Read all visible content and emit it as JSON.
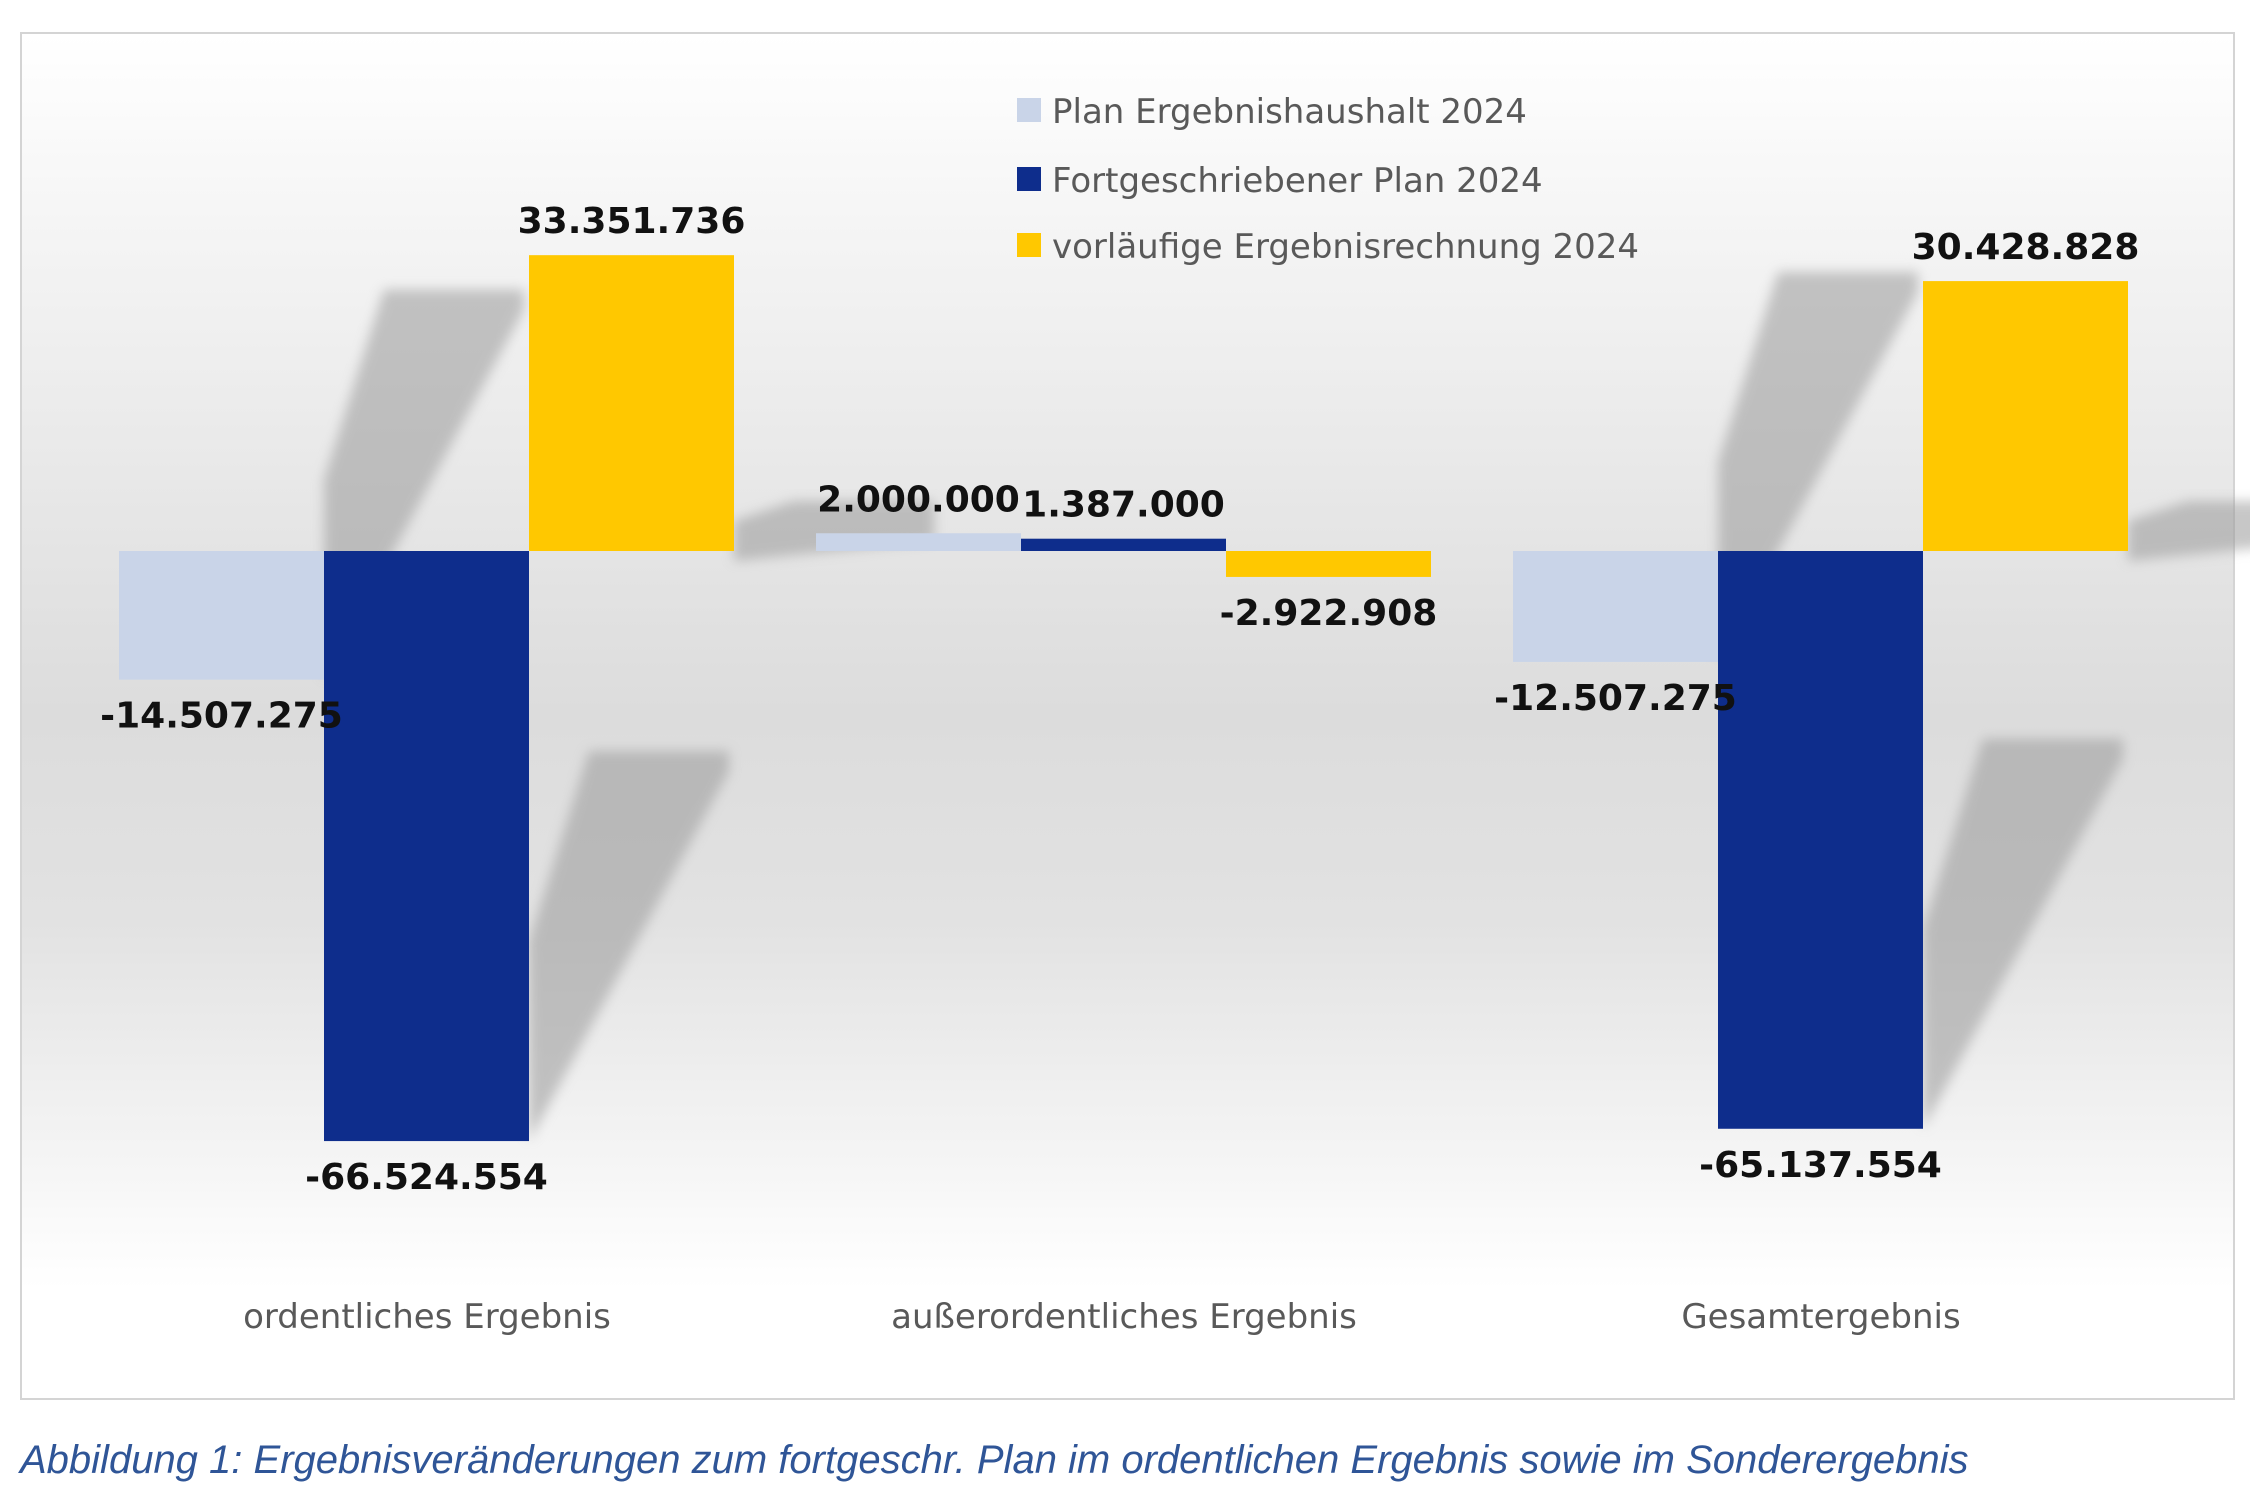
{
  "chart_data": {
    "type": "bar",
    "categories": [
      "ordentliches Ergebnis",
      "außerordentliches Ergebnis",
      "Gesamtergebnis"
    ],
    "series": [
      {
        "name": "Plan Ergebnishaushalt 2024",
        "color": "#c9d4e8",
        "values": [
          -14507275,
          2000000,
          -12507275
        ],
        "labels": [
          "-14.507.275",
          "2.000.000",
          "-12.507.275"
        ]
      },
      {
        "name": "Fortgeschriebener Plan 2024",
        "color": "#0e2d8c",
        "values": [
          -66524554,
          1387000,
          -65137554
        ],
        "labels": [
          "-66.524.554",
          "1.387.000",
          "-65.137.554"
        ]
      },
      {
        "name": "vorläufige Ergebnisrechnung 2024",
        "color": "#ffc800",
        "values": [
          33351736,
          -2922908,
          30428828
        ],
        "labels": [
          "33.351.736",
          "-2.922.908",
          "30.428.828"
        ]
      }
    ],
    "legend_position": "top-center",
    "grid": false,
    "axes_visible": false
  },
  "caption": "Abbildung 1: Ergebnisveränderungen zum fortgeschr. Plan im ordentlichen Ergebnis sowie im Sonderergebnis"
}
